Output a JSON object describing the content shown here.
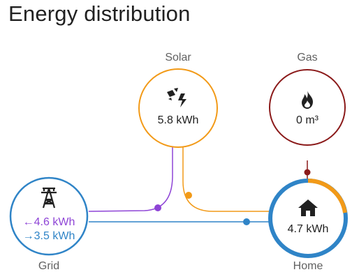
{
  "card": {
    "title": "Energy distribution"
  },
  "nodes": {
    "solar": {
      "label": "Solar",
      "value": "5.8 kWh",
      "icon": "solar-power-icon"
    },
    "gas": {
      "label": "Gas",
      "value": "0 m³",
      "icon": "fire-icon"
    },
    "grid": {
      "label": "Grid",
      "import_value": "←4.6 kWh",
      "export_value": "→3.5 kWh",
      "icon": "transmission-tower-icon"
    },
    "home": {
      "label": "Home",
      "value": "4.7 kWh",
      "icon": "home-icon"
    }
  },
  "colors": {
    "solar": "#f29a18",
    "gas": "#8b1a1a",
    "grid": "#2f84c7",
    "grid_return": "#8e44d6",
    "home_ring_grid": "#2f84c7",
    "home_ring_solar": "#f29a18"
  }
}
